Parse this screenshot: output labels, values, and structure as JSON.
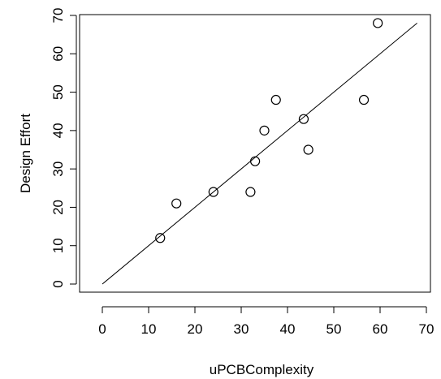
{
  "chart_data": {
    "type": "scatter",
    "title": "",
    "xlabel": "uPCBComplexity",
    "ylabel": "Design Effort",
    "xlim": [
      0,
      70
    ],
    "ylim": [
      0,
      70
    ],
    "xticks": [
      0,
      10,
      20,
      30,
      40,
      50,
      60,
      70
    ],
    "yticks": [
      0,
      10,
      20,
      30,
      40,
      50,
      60,
      70
    ],
    "grid": false,
    "legend": "none",
    "points": [
      {
        "x": 12.5,
        "y": 12
      },
      {
        "x": 16,
        "y": 21
      },
      {
        "x": 24,
        "y": 24
      },
      {
        "x": 32,
        "y": 24
      },
      {
        "x": 33,
        "y": 32
      },
      {
        "x": 35,
        "y": 40
      },
      {
        "x": 37.5,
        "y": 48
      },
      {
        "x": 43.5,
        "y": 43
      },
      {
        "x": 44.5,
        "y": 35
      },
      {
        "x": 56.5,
        "y": 48
      },
      {
        "x": 59.5,
        "y": 68
      }
    ],
    "fit_line": {
      "x": [
        0,
        68
      ],
      "y": [
        0,
        68
      ]
    },
    "colors": {
      "points": "#000000",
      "line": "#000000",
      "axes": "#000000"
    }
  }
}
